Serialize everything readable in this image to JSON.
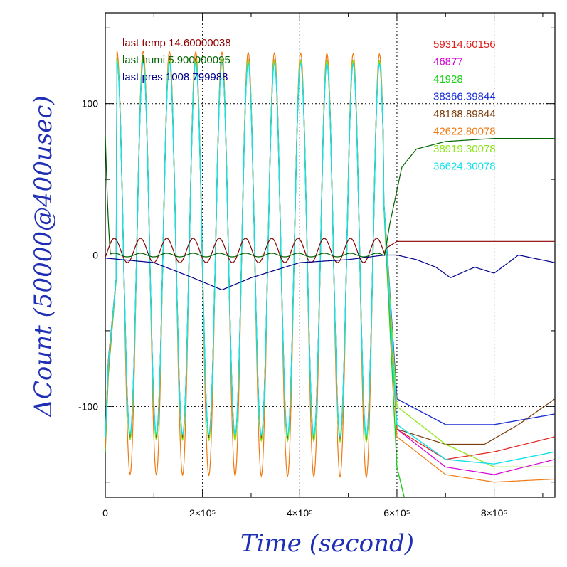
{
  "chart_data": {
    "type": "line",
    "title": "",
    "xlabel": "Time (second)",
    "ylabel": "ΔCount (50000@400usec)",
    "xlim": [
      0,
      925000
    ],
    "ylim": [
      -160,
      160
    ],
    "grid": true,
    "x_ticks": [
      {
        "value": 0,
        "label": "0"
      },
      {
        "value": 200000,
        "label": "2×10⁵"
      },
      {
        "value": 400000,
        "label": "4×10⁵"
      },
      {
        "value": 600000,
        "label": "6×10⁵"
      },
      {
        "value": 800000,
        "label": "8×10⁵"
      }
    ],
    "y_ticks": [
      {
        "value": 100,
        "label": "100"
      },
      {
        "value": 0,
        "label": "0"
      },
      {
        "value": -100,
        "label": "-100"
      }
    ],
    "annotations": [
      {
        "text": "last temp 14.60000038",
        "color": "#8b0000"
      },
      {
        "text": "last humi 5.900000095",
        "color": "#006400"
      },
      {
        "text": "last pres 1008.799988",
        "color": "#00008b"
      }
    ],
    "legend": [
      {
        "text": "59314.60156",
        "color": "#e0201c"
      },
      {
        "text": "46877",
        "color": "#d400d4"
      },
      {
        "text": "41928",
        "color": "#19d219"
      },
      {
        "text": "38366.39844",
        "color": "#1b2fd6"
      },
      {
        "text": "48168.89844",
        "color": "#7a3c0a"
      },
      {
        "text": "42622.80078",
        "color": "#f07a12"
      },
      {
        "text": "38919.30078",
        "color": "#8ee61a"
      },
      {
        "text": "36624.30078",
        "color": "#14e0e8"
      }
    ],
    "oscillation": {
      "period": 54000,
      "phase_x": 24000,
      "end": 572000
    },
    "series": [
      {
        "color": "#e0201c",
        "x": [
          0,
          6000,
          24000,
          600000,
          700000,
          800000,
          925000
        ],
        "y": [
          -120,
          -70,
          -10,
          -115,
          -135,
          -130,
          -120
        ],
        "amp": [
          130,
          120
        ],
        "kind": "osc",
        "w": 1.2
      },
      {
        "color": "#d400d4",
        "x": [
          0,
          6000,
          24000,
          600000,
          700000,
          800000,
          925000
        ],
        "y": [
          -125,
          -75,
          -10,
          -115,
          -140,
          -145,
          -135
        ],
        "amp": [
          130,
          120
        ],
        "kind": "osc",
        "w": 1.2
      },
      {
        "color": "#19d219",
        "x": [
          0,
          6000,
          24000,
          600000,
          630000,
          670000
        ],
        "y": [
          -130,
          -80,
          -10,
          -140,
          -180,
          -180
        ],
        "amp": [
          130,
          120
        ],
        "kind": "osc",
        "w": 1.4
      },
      {
        "color": "#1b2fd6",
        "x": [
          0,
          6000,
          24000,
          600000,
          700000,
          800000,
          925000
        ],
        "y": [
          -122,
          -72,
          -10,
          -95,
          -112,
          -112,
          -105
        ],
        "amp": [
          130,
          120
        ],
        "kind": "osc",
        "w": 1.4
      },
      {
        "color": "#7a3c0a",
        "x": [
          0,
          6000,
          24000,
          600000,
          700000,
          780000,
          850000,
          925000
        ],
        "y": [
          -123,
          -74,
          -10,
          -115,
          -125,
          -125,
          -112,
          -95
        ],
        "amp": [
          130,
          120
        ],
        "kind": "osc",
        "w": 1.2
      },
      {
        "color": "#f07a12",
        "x": [
          0,
          6000,
          24000,
          600000,
          700000,
          800000,
          925000
        ],
        "y": [
          -128,
          -78,
          -10,
          -120,
          -145,
          -150,
          -148
        ],
        "amp": [
          135,
          145
        ],
        "kind": "osc",
        "w": 1.2
      },
      {
        "color": "#8ee61a",
        "x": [
          0,
          6000,
          24000,
          600000,
          700000,
          800000,
          925000
        ],
        "y": [
          -120,
          -72,
          -10,
          -100,
          -125,
          -140,
          -140
        ],
        "amp": [
          130,
          122
        ],
        "kind": "osc",
        "w": 1.3
      },
      {
        "color": "#14e0e8",
        "x": [
          0,
          6000,
          24000,
          600000,
          700000,
          800000,
          925000
        ],
        "y": [
          -121,
          -73,
          -10,
          -112,
          -135,
          -138,
          -130
        ],
        "amp": [
          128,
          118
        ],
        "kind": "osc",
        "w": 1.4
      },
      {
        "color": "#8b0000",
        "x": [
          0,
          575000,
          580000,
          600000,
          925000
        ],
        "y": [
          3,
          3,
          5,
          9,
          9
        ],
        "amp": [
          8,
          8
        ],
        "kind": "env",
        "w": 1.2
      },
      {
        "color": "#006400",
        "x": [
          0,
          5000,
          10000,
          575000,
          585000,
          610000,
          640000,
          700000,
          800000,
          925000
        ],
        "y": [
          80,
          30,
          0,
          0,
          20,
          58,
          70,
          75,
          77,
          77
        ],
        "amp": [
          3,
          3
        ],
        "kind": "env",
        "w": 1.2
      },
      {
        "color": "#00008b",
        "x": [
          0,
          100000,
          180000,
          240000,
          300000,
          400000,
          500000,
          575000,
          600000,
          640000,
          680000,
          710000,
          760000,
          800000,
          850000,
          925000
        ],
        "y": [
          -2,
          -5,
          -15,
          -23,
          -15,
          -5,
          -3,
          0,
          0,
          -3,
          -8,
          -15,
          -8,
          -12,
          0,
          -5
        ],
        "amp": [
          0,
          0
        ],
        "kind": "env",
        "w": 1.2
      }
    ]
  }
}
